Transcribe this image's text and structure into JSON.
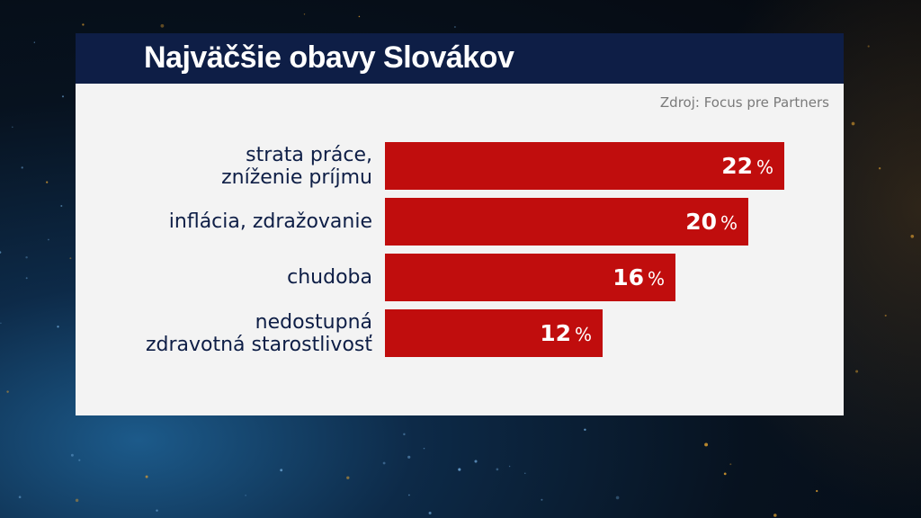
{
  "title": "Najväčšie obavy Slovákov",
  "source": "Zdroj: Focus pre Partners",
  "chart_data": {
    "type": "bar",
    "orientation": "horizontal",
    "categories": [
      "strata práce,\nzníženie príjmu",
      "inflácia, zdražovanie",
      "chudoba",
      "nedostupná\nzdravotná starostlivosť"
    ],
    "values": [
      22,
      20,
      16,
      12
    ],
    "value_unit": "%",
    "colors": {
      "bar": "#c00d0d",
      "title_bar": "#0e1e46",
      "label": "#0e1e46"
    }
  }
}
